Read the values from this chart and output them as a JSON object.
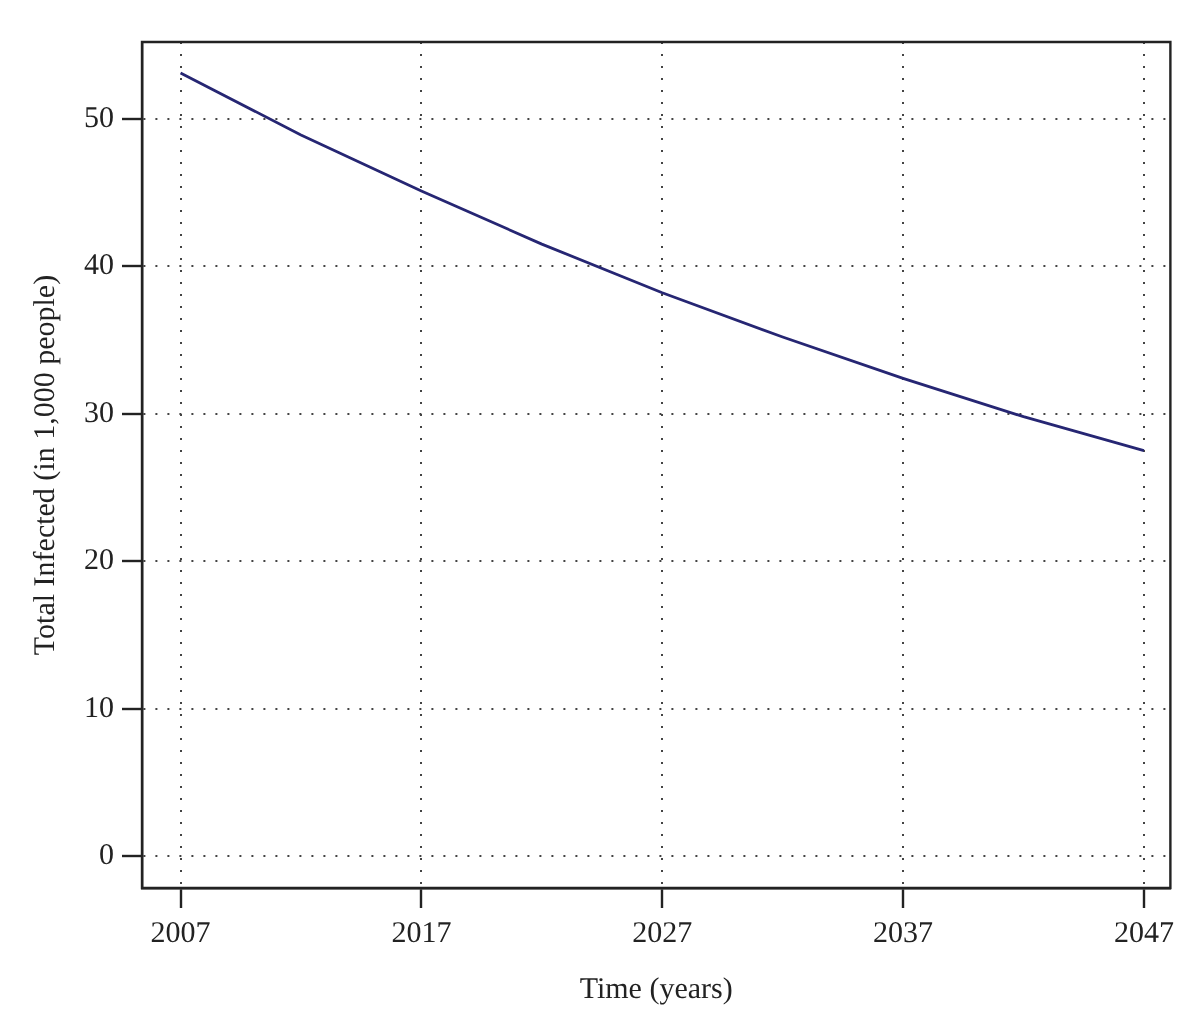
{
  "chart_data": {
    "type": "line",
    "xlabel": "Time (years)",
    "ylabel": "Total Infected (in 1,000 people)",
    "x": [
      2007,
      2012,
      2017,
      2022,
      2027,
      2032,
      2037,
      2042,
      2047
    ],
    "series": [
      {
        "color": "#262673",
        "values": [
          53.1,
          48.9,
          45.1,
          41.5,
          38.2,
          35.2,
          32.4,
          29.8,
          27.5
        ]
      }
    ],
    "xlim": [
      2005.4,
      2048.1
    ],
    "xticks": [
      2007,
      2017,
      2027,
      2037,
      2047
    ],
    "ylim": [
      -2.15,
      55.2
    ],
    "yticks": [
      0,
      10,
      20,
      30,
      40,
      50
    ],
    "grid": true,
    "legend": false,
    "marker": "none",
    "line_style": "solid"
  }
}
